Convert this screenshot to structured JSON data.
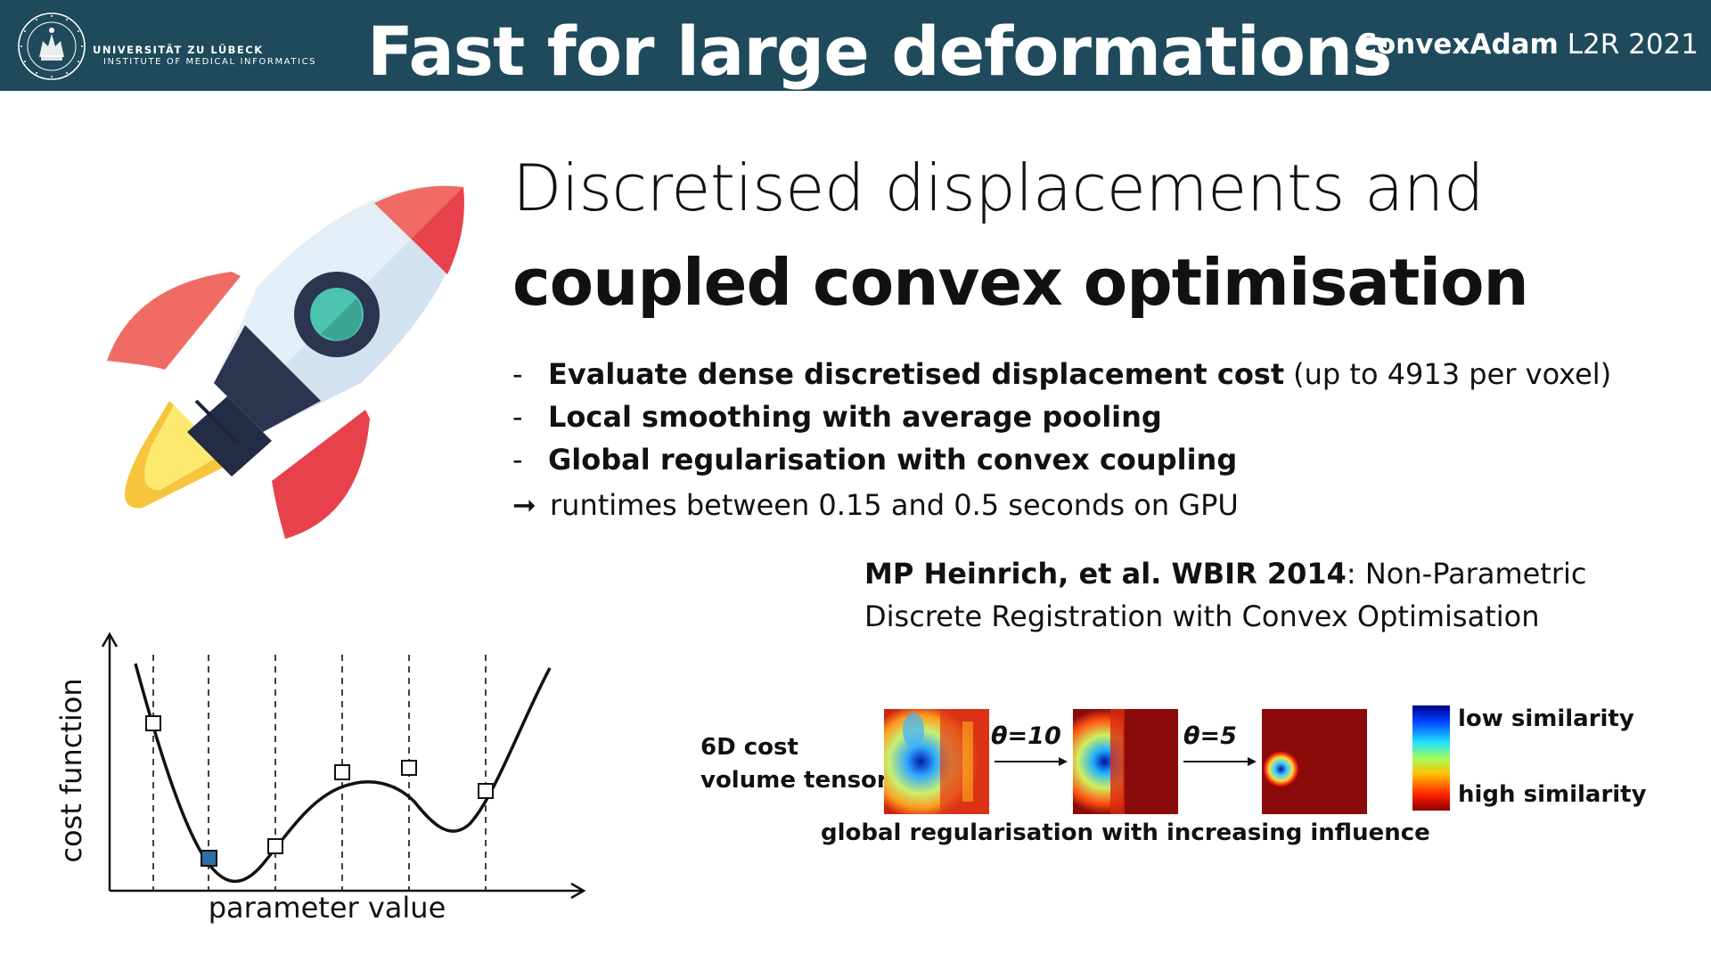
{
  "header": {
    "university_line1": "UNIVERSITÄT ZU LÜBECK",
    "university_line2": "INSTITUTE OF MEDICAL INFORMATICS",
    "seal_text": "UNIVERSITAS · LUBECENSIS · SIGILLUM",
    "title": "Fast for large deformations",
    "brand_bold": "ConvexAdam",
    "brand_event": "L2R 2021",
    "background_color": "#1e4a5c"
  },
  "headline": {
    "line1": "Discretised displacements and",
    "line2": "coupled convex optimisation"
  },
  "bullets": [
    {
      "dash": "-",
      "bold": "Evaluate dense discretised displacement cost",
      "normal": "(up to 4913 per voxel)"
    },
    {
      "dash": "-",
      "bold": "Local smoothing with average pooling",
      "normal": ""
    },
    {
      "dash": "-",
      "bold": "Global regularisation with convex coupling",
      "normal": ""
    }
  ],
  "result": {
    "arrow": "➞",
    "text": "runtimes between 0.15 and 0.5 seconds on GPU"
  },
  "reference": {
    "bold": "MP Heinrich, et al. WBIR 2014",
    "line1_rest": ": Non-Parametric",
    "line2": "Discrete Registration with Convex Optimisation"
  },
  "plot": {
    "ylabel": "cost function",
    "xlabel": "parameter value",
    "selected_fill": "#2e6ea6"
  },
  "heatmap_figure": {
    "input_label_line1": "6D cost",
    "input_label_line2": "volume tensor",
    "theta1": "θ=10",
    "theta2": "θ=5",
    "caption": "global regularisation with increasing influence",
    "colorbar_top": "low similarity",
    "colorbar_bottom": "high similarity",
    "background_dark_red": "#8b0a0a"
  },
  "icons": {
    "rocket": "rocket-icon",
    "seal": "university-seal-icon",
    "arrow": "right-arrow-icon"
  }
}
